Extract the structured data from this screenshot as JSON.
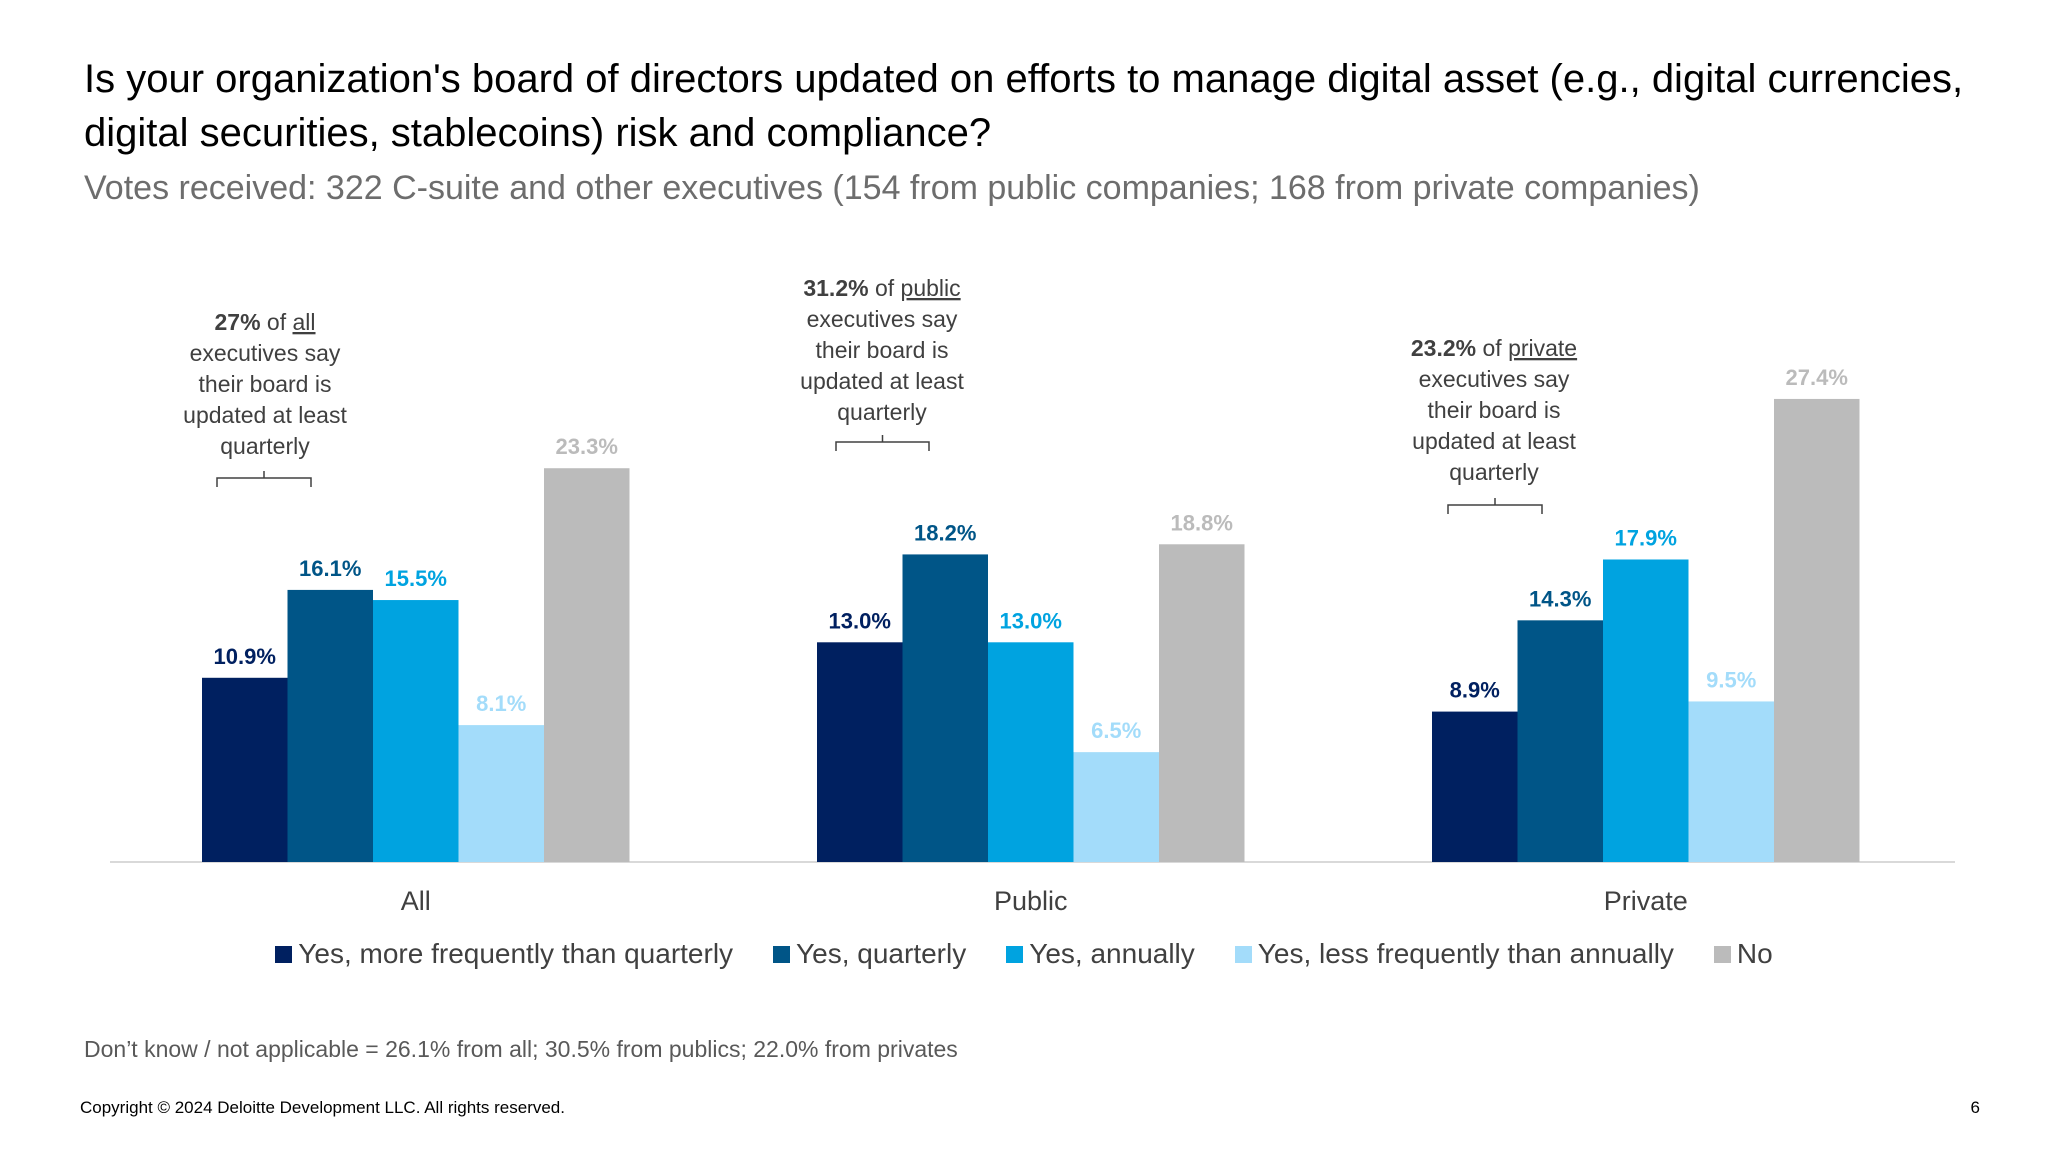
{
  "title": "Is your organization's board of directors updated on efforts to manage digital asset (e.g., digital currencies, digital securities, stablecoins) risk and compliance?",
  "subtitle": "Votes received: 322 C-suite and other executives (154 from public companies; 168 from private companies)",
  "chart_data": {
    "type": "bar",
    "categories": [
      "All",
      "Public",
      "Private"
    ],
    "series": [
      {
        "name": "Yes, more frequently than quarterly",
        "color": "#002060",
        "values": [
          10.9,
          13.0,
          8.9
        ],
        "labels": [
          "10.9%",
          "13.0%",
          "8.9%"
        ]
      },
      {
        "name": "Yes, quarterly",
        "color": "#005587",
        "values": [
          16.1,
          18.2,
          14.3
        ],
        "labels": [
          "16.1%",
          "18.2%",
          "14.3%"
        ]
      },
      {
        "name": "Yes, annually",
        "color": "#00A3E0",
        "values": [
          15.5,
          13.0,
          17.9
        ],
        "labels": [
          "15.5%",
          "13.0%",
          "17.9%"
        ]
      },
      {
        "name": "Yes, less frequently than annually",
        "color": "#A3DCFA",
        "values": [
          8.1,
          6.5,
          9.5
        ],
        "labels": [
          "8.1%",
          "6.5%",
          "9.5%"
        ]
      },
      {
        "name": "No",
        "color": "#BBBBBB",
        "values": [
          23.3,
          18.8,
          27.4
        ],
        "labels": [
          "23.3%",
          "18.8%",
          "27.4%"
        ]
      }
    ],
    "ylim": [
      0,
      30
    ],
    "grid": false,
    "legend_position": "bottom",
    "annotations": [
      {
        "bold": "27%",
        "of": " of ",
        "group": "all",
        "lines": [
          "executives say",
          "their board is",
          "updated at least",
          "quarterly"
        ]
      },
      {
        "bold": "31.2%",
        "of": " of ",
        "group": "public",
        "lines": [
          "executives say",
          "their board is",
          "updated at least",
          "quarterly"
        ]
      },
      {
        "bold": "23.2%",
        "of": " of ",
        "group": "private",
        "lines": [
          "executives say",
          "their board is",
          "updated at least",
          "quarterly"
        ]
      }
    ]
  },
  "footnote": "Don’t know / not applicable = 26.1% from all; 30.5% from publics; 22.0% from privates",
  "copyright": "Copyright © 2024 Deloitte Development LLC. All rights reserved.",
  "page_number": "6"
}
